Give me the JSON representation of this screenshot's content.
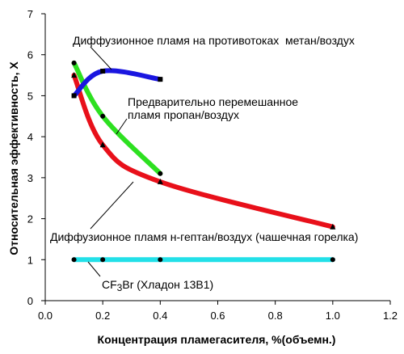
{
  "chart_data": {
    "type": "line",
    "xlabel": "Концентрация пламегасителя, %(объемн.)",
    "ylabel": "Относительная эффективность, Х",
    "xlim": [
      0,
      1.2
    ],
    "ylim": [
      0,
      7
    ],
    "x_ticks": [
      "0.0",
      "0.2",
      "0.4",
      "0.6",
      "0.8",
      "1.0",
      "1.2"
    ],
    "y_ticks": [
      "0",
      "1",
      "2",
      "3",
      "4",
      "5",
      "6",
      "7"
    ],
    "grid": false,
    "legend": "none",
    "series": [
      {
        "color": "#e8101a",
        "marker": "triangle",
        "x": [
          0.1,
          0.2,
          0.4,
          1.0
        ],
        "y": [
          5.5,
          3.8,
          2.9,
          1.8
        ]
      },
      {
        "color": "#2de020",
        "marker": "circle",
        "x": [
          0.1,
          0.2,
          0.4
        ],
        "y": [
          5.8,
          4.5,
          3.1
        ]
      },
      {
        "color": "#1a16e0",
        "marker": "square",
        "x": [
          0.1,
          0.2,
          0.4
        ],
        "y": [
          5.0,
          5.6,
          5.4
        ]
      },
      {
        "color": "#22e0e8",
        "marker": "circle",
        "x": [
          0.1,
          0.2,
          0.4,
          1.0
        ],
        "y": [
          1.0,
          1.0,
          1.0,
          1.0
        ]
      }
    ],
    "annotations": {
      "methane": "Диффузионное пламя на противотоках  метан/воздух",
      "propane_line1": "Предварительно перемешанное",
      "propane_line2": "пламя пропан/воздух",
      "heptane": "Диффузионное пламя н-гептан/воздух (чашечная горелка)",
      "cf3br_prefix": "CF",
      "cf3br_sub": "3",
      "cf3br_suffix": "Br (Хладон 13В1)"
    }
  }
}
